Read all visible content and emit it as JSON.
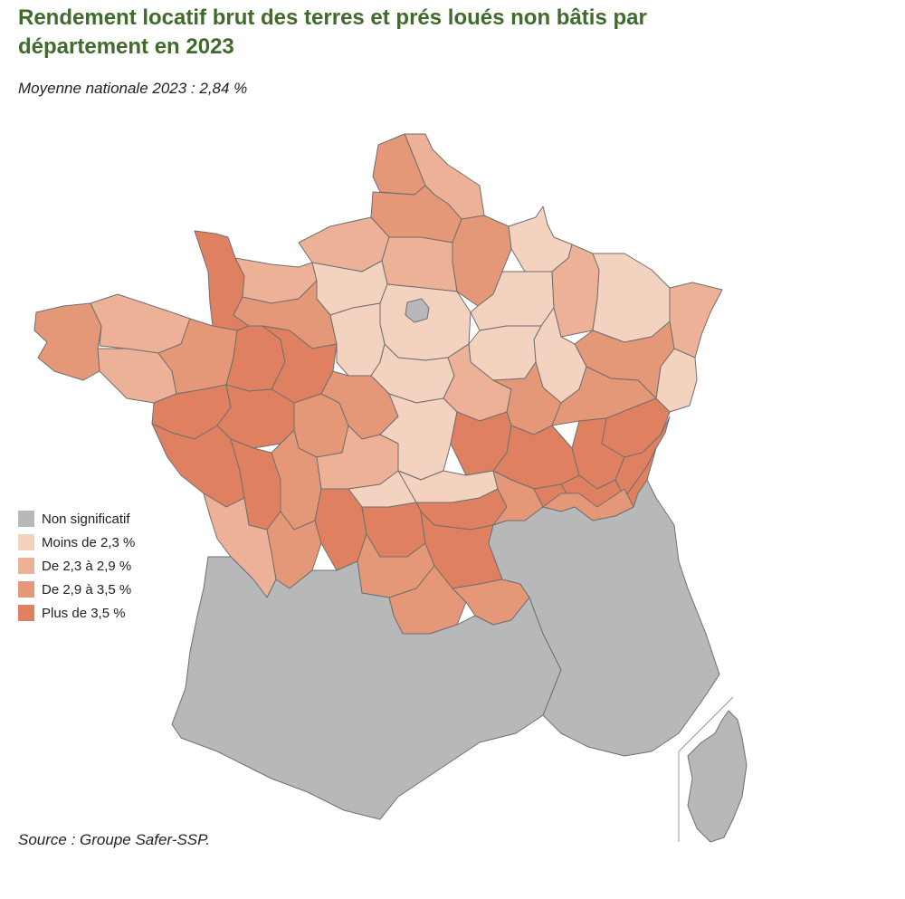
{
  "title": "Rendement locatif brut des terres et prés loués non bâtis par département en 2023",
  "subtitle": "Moyenne nationale 2023 : 2,84 %",
  "source": "Source : Groupe Safer-SSP.",
  "legend": [
    {
      "label": "Non significatif",
      "color": "#b7b8ba"
    },
    {
      "label": "Moins de 2,3 %",
      "color": "#f4d2c0"
    },
    {
      "label": "De 2,3 à 2,9 %",
      "color": "#edb197"
    },
    {
      "label": "De 2,9 à 3,5 %",
      "color": "#e59877"
    },
    {
      "label": "Plus de 3,5 %",
      "color": "#df8160"
    }
  ],
  "map": {
    "regions": [
      {
        "id": "nord",
        "cls": 2
      },
      {
        "id": "pas-de-calais",
        "cls": 3
      },
      {
        "id": "somme",
        "cls": 3
      },
      {
        "id": "aisne",
        "cls": 3
      },
      {
        "id": "seine-maritime",
        "cls": 2
      },
      {
        "id": "oise",
        "cls": 2
      },
      {
        "id": "ardennes",
        "cls": 1
      },
      {
        "id": "marne",
        "cls": 1
      },
      {
        "id": "meuse",
        "cls": 2
      },
      {
        "id": "moselle",
        "cls": 1
      },
      {
        "id": "bas-rhin",
        "cls": 2
      },
      {
        "id": "haut-rhin",
        "cls": 1
      },
      {
        "id": "vosges",
        "cls": 3
      },
      {
        "id": "haute-marne",
        "cls": 1
      },
      {
        "id": "aube",
        "cls": 1
      },
      {
        "id": "manche",
        "cls": 4
      },
      {
        "id": "calvados",
        "cls": 2
      },
      {
        "id": "eure",
        "cls": 1
      },
      {
        "id": "orne",
        "cls": 3
      },
      {
        "id": "ile-de-france",
        "cls": 1
      },
      {
        "id": "paris",
        "cls": 0
      },
      {
        "id": "finistere",
        "cls": 3
      },
      {
        "id": "cotes-d-armor",
        "cls": 2
      },
      {
        "id": "morbihan",
        "cls": 2
      },
      {
        "id": "ille-et-vilaine",
        "cls": 3
      },
      {
        "id": "mayenne",
        "cls": 4
      },
      {
        "id": "sarthe",
        "cls": 4
      },
      {
        "id": "eure-et-loir",
        "cls": 1
      },
      {
        "id": "loiret",
        "cls": 1
      },
      {
        "id": "yonne",
        "cls": 2
      },
      {
        "id": "cote-d-or",
        "cls": 3
      },
      {
        "id": "haute-saone",
        "cls": 3
      },
      {
        "id": "doubs",
        "cls": 4
      },
      {
        "id": "jura",
        "cls": 4
      },
      {
        "id": "loire-atlantique",
        "cls": 4
      },
      {
        "id": "maine-et-loire",
        "cls": 4
      },
      {
        "id": "indre-et-loire",
        "cls": 3
      },
      {
        "id": "loir-et-cher",
        "cls": 3
      },
      {
        "id": "cher",
        "cls": 1
      },
      {
        "id": "nievre",
        "cls": 4
      },
      {
        "id": "saone-et-loire",
        "cls": 4
      },
      {
        "id": "ain",
        "cls": 4
      },
      {
        "id": "haute-savoie",
        "cls": 4
      },
      {
        "id": "savoie",
        "cls": 4
      },
      {
        "id": "vendee",
        "cls": 4
      },
      {
        "id": "deux-sevres",
        "cls": 4
      },
      {
        "id": "vienne",
        "cls": 3
      },
      {
        "id": "indre",
        "cls": 2
      },
      {
        "id": "creuse",
        "cls": 1
      },
      {
        "id": "allier",
        "cls": 1
      },
      {
        "id": "puy-de-dome",
        "cls": 4
      },
      {
        "id": "loire",
        "cls": 3
      },
      {
        "id": "rhone",
        "cls": 4
      },
      {
        "id": "isere",
        "cls": 3
      },
      {
        "id": "charente-maritime",
        "cls": 2
      },
      {
        "id": "charente",
        "cls": 3
      },
      {
        "id": "haute-vienne",
        "cls": 4
      },
      {
        "id": "correze",
        "cls": 4
      },
      {
        "id": "cantal",
        "cls": 3
      },
      {
        "id": "haute-loire",
        "cls": 4
      },
      {
        "id": "lozere",
        "cls": 3
      },
      {
        "id": "ardeche",
        "cls": 3
      },
      {
        "id": "south-west",
        "cls": 0
      },
      {
        "id": "south-east",
        "cls": 0
      },
      {
        "id": "corse",
        "cls": 0
      }
    ]
  }
}
